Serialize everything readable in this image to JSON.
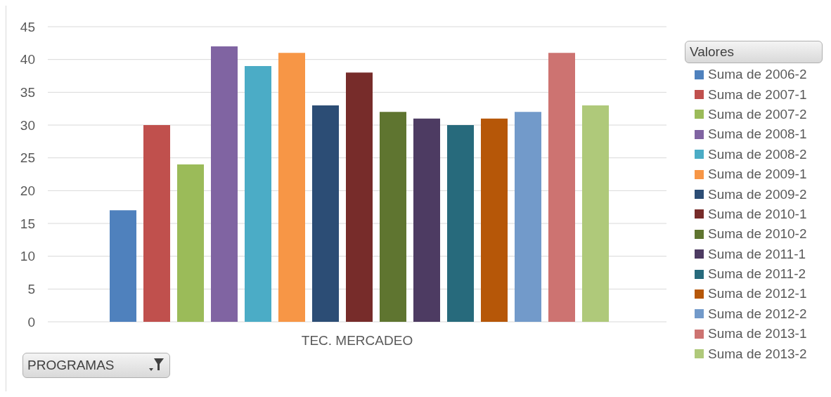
{
  "chart_data": {
    "type": "bar",
    "categories": [
      "TEC. MERCADEO"
    ],
    "series": [
      {
        "name": "Suma de 2006-2",
        "color": "#4f81bd",
        "values": [
          17
        ]
      },
      {
        "name": "Suma de 2007-1",
        "color": "#c0504d",
        "values": [
          30
        ]
      },
      {
        "name": "Suma de 2007-2",
        "color": "#9bbb59",
        "values": [
          24
        ]
      },
      {
        "name": "Suma de 2008-1",
        "color": "#8064a2",
        "values": [
          42
        ]
      },
      {
        "name": "Suma de 2008-2",
        "color": "#4bacc6",
        "values": [
          39
        ]
      },
      {
        "name": "Suma de 2009-1",
        "color": "#f79646",
        "values": [
          41
        ]
      },
      {
        "name": "Suma de 2009-2",
        "color": "#2c4d75",
        "values": [
          33
        ]
      },
      {
        "name": "Suma de 2010-1",
        "color": "#772c2a",
        "values": [
          38
        ]
      },
      {
        "name": "Suma de 2010-2",
        "color": "#5f7530",
        "values": [
          32
        ]
      },
      {
        "name": "Suma de 2011-1",
        "color": "#4d3b62",
        "values": [
          31
        ]
      },
      {
        "name": "Suma de 2011-2",
        "color": "#276a7c",
        "values": [
          30
        ]
      },
      {
        "name": "Suma de 2012-1",
        "color": "#b65708",
        "values": [
          31
        ]
      },
      {
        "name": "Suma de 2012-2",
        "color": "#729aca",
        "values": [
          32
        ]
      },
      {
        "name": "Suma de 2013-1",
        "color": "#cd7371",
        "values": [
          41
        ]
      },
      {
        "name": "Suma de 2013-2",
        "color": "#afc97a",
        "values": [
          33
        ]
      }
    ],
    "ylim": [
      0,
      45
    ],
    "yticks": [
      0,
      5,
      10,
      15,
      20,
      25,
      30,
      35,
      40,
      45
    ],
    "grid": "y",
    "legend": "right",
    "legend_title": "Valores",
    "annotations": [
      "PROGRAMAS"
    ]
  }
}
